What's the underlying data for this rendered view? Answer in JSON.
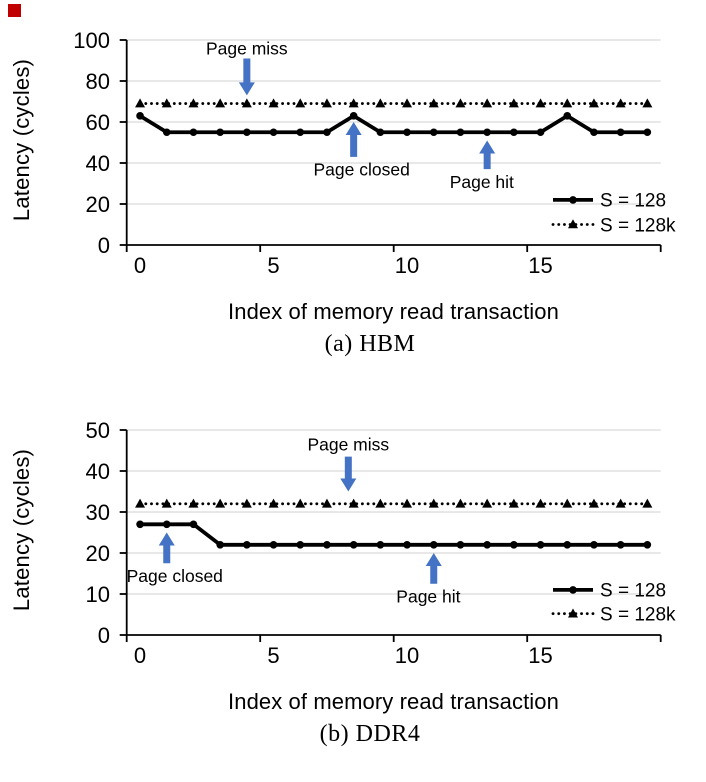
{
  "page": {
    "background": "#ffffff"
  },
  "red_marker": {
    "color": "#c00000"
  },
  "colors": {
    "series_line": "#000000",
    "gridline": "#d9d9d9",
    "axis": "#000000",
    "arrow": "#4472c4",
    "text": "#000000"
  },
  "chart_data": [
    {
      "type": "line",
      "caption": "(a) HBM",
      "xlabel": "Index of memory read transaction",
      "ylabel": "Latency (cycles)",
      "ylim": [
        0,
        100
      ],
      "yticks": [
        0,
        20,
        40,
        60,
        80,
        100
      ],
      "xticks": [
        0,
        5,
        10,
        15
      ],
      "grid": "horizontal",
      "legend_position": "right-middle",
      "x": [
        0,
        1,
        2,
        3,
        4,
        5,
        6,
        7,
        8,
        9,
        10,
        11,
        12,
        13,
        14,
        15,
        16,
        17,
        18,
        19
      ],
      "series": [
        {
          "name": "S = 128",
          "line": "solid",
          "marker": "circle",
          "values": [
            63,
            55,
            55,
            55,
            55,
            55,
            55,
            55,
            63,
            55,
            55,
            55,
            55,
            55,
            55,
            55,
            63,
            55,
            55,
            55
          ]
        },
        {
          "name": "S = 128k",
          "line": "dotted",
          "marker": "triangle",
          "values": [
            69,
            69,
            69,
            69,
            69,
            69,
            69,
            69,
            69,
            69,
            69,
            69,
            69,
            69,
            69,
            69,
            69,
            69,
            69,
            69
          ]
        }
      ],
      "annotations": [
        {
          "label": "Page miss",
          "x": 4,
          "dir": "down",
          "tip": 73,
          "tail": 91,
          "text_x": 4,
          "text_y": 96
        },
        {
          "label": "Page closed",
          "x": 8,
          "dir": "up",
          "tip": 60,
          "tail": 43,
          "text_x": 8.3,
          "text_y": 37
        },
        {
          "label": "Page hit",
          "x": 13,
          "dir": "up",
          "tip": 51,
          "tail": 37,
          "text_x": 12.8,
          "text_y": 31
        }
      ],
      "legend_row_y": [
        22,
        10
      ]
    },
    {
      "type": "line",
      "caption": "(b) DDR4",
      "xlabel": "Index of memory read transaction",
      "ylabel": "Latency (cycles)",
      "ylim": [
        0,
        50
      ],
      "yticks": [
        0,
        10,
        20,
        30,
        40,
        50
      ],
      "xticks": [
        0,
        5,
        10,
        15
      ],
      "grid": "horizontal",
      "legend_position": "right-bottom",
      "x": [
        0,
        1,
        2,
        3,
        4,
        5,
        6,
        7,
        8,
        9,
        10,
        11,
        12,
        13,
        14,
        15,
        16,
        17,
        18,
        19
      ],
      "series": [
        {
          "name": "S = 128",
          "line": "solid",
          "marker": "circle",
          "values": [
            27,
            27,
            27,
            22,
            22,
            22,
            22,
            22,
            22,
            22,
            22,
            22,
            22,
            22,
            22,
            22,
            22,
            22,
            22,
            22
          ]
        },
        {
          "name": "S = 128k",
          "line": "dotted",
          "marker": "triangle",
          "values": [
            32,
            32,
            32,
            32,
            32,
            32,
            32,
            32,
            32,
            32,
            32,
            32,
            32,
            32,
            32,
            32,
            32,
            32,
            32,
            32
          ]
        }
      ],
      "annotations": [
        {
          "label": "Page miss",
          "x": 7.8,
          "dir": "down",
          "tip": 35,
          "tail": 43.5,
          "text_x": 7.8,
          "text_y": 46.5
        },
        {
          "label": "Page closed",
          "x": 1,
          "dir": "up",
          "tip": 25,
          "tail": 17.5,
          "text_x": 1.3,
          "text_y": 14.5
        },
        {
          "label": "Page hit",
          "x": 11,
          "dir": "up",
          "tip": 20,
          "tail": 12.5,
          "text_x": 10.8,
          "text_y": 9.5
        }
      ],
      "legend_row_y": [
        11,
        5.2
      ]
    }
  ]
}
